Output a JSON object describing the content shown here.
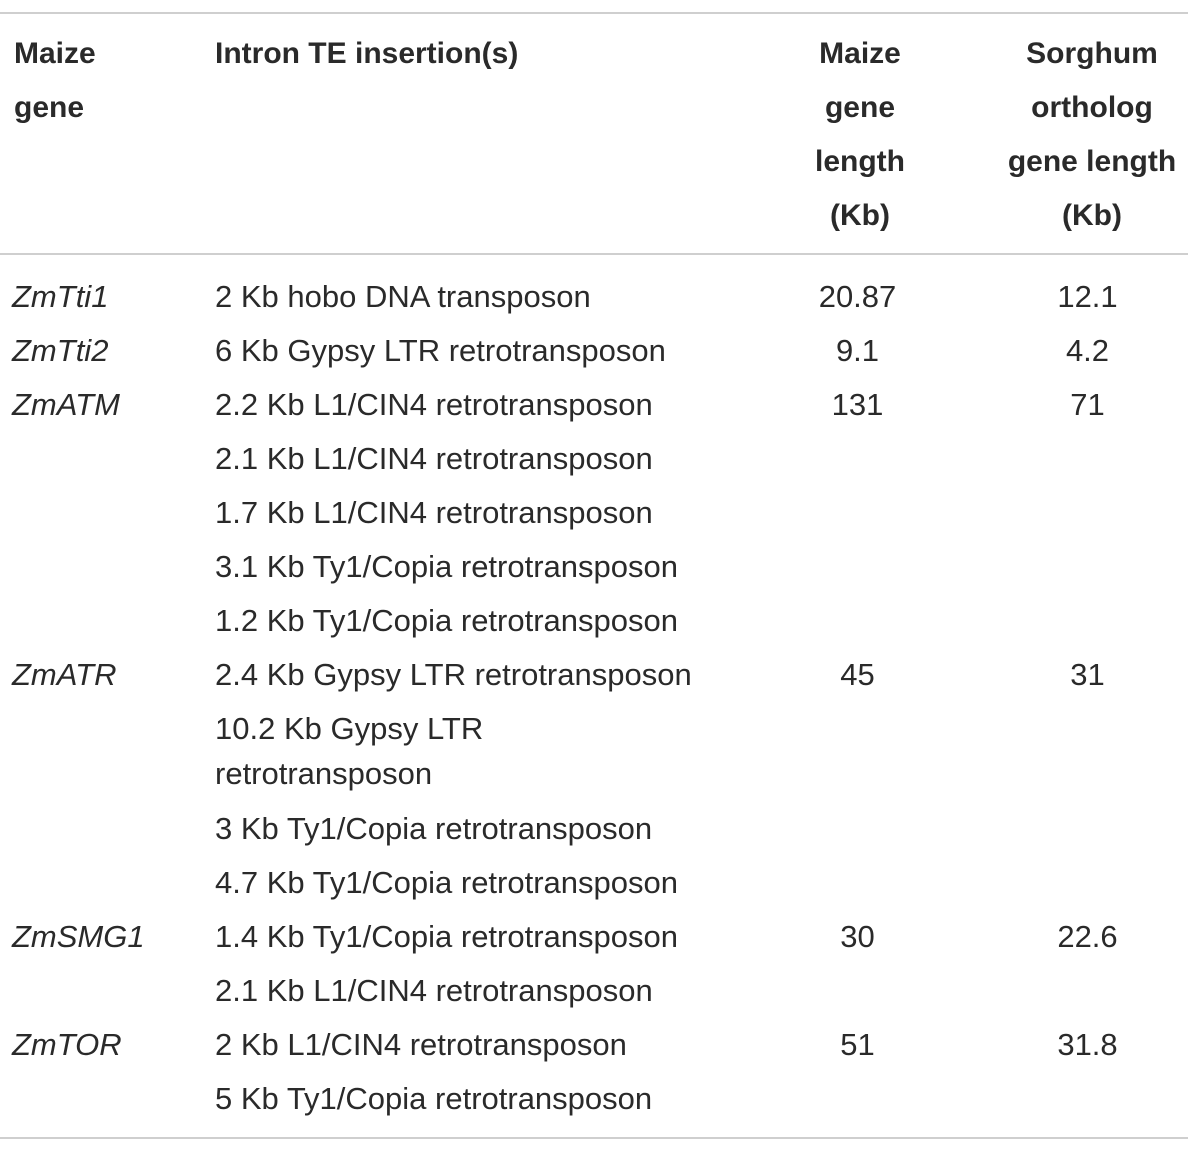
{
  "table": {
    "headers": {
      "gene": "Maize\ngene",
      "te": "Intron TE insertion(s)",
      "maize_length": "Maize\ngene\nlength\n(Kb)",
      "sorghum_length": "Sorghum\northolog\ngene length\n(Kb)"
    },
    "rows": [
      {
        "gene": "ZmTti1",
        "te": "2 Kb hobo DNA transposon",
        "maize": "20.87",
        "sorghum": "12.1"
      },
      {
        "gene": "ZmTti2",
        "te": "6 Kb Gypsy LTR retrotransposon",
        "maize": "9.1",
        "sorghum": "4.2"
      },
      {
        "gene": "ZmATM",
        "te": "2.2 Kb L1/CIN4 retrotransposon",
        "maize": "131",
        "sorghum": "71"
      },
      {
        "gene": "",
        "te": "2.1 Kb L1/CIN4 retrotransposon",
        "maize": "",
        "sorghum": ""
      },
      {
        "gene": "",
        "te": "1.7 Kb L1/CIN4 retrotransposon",
        "maize": "",
        "sorghum": ""
      },
      {
        "gene": "",
        "te": "3.1 Kb Ty1/Copia retrotransposon",
        "maize": "",
        "sorghum": ""
      },
      {
        "gene": "",
        "te": "1.2 Kb Ty1/Copia retrotransposon",
        "maize": "",
        "sorghum": ""
      },
      {
        "gene": "ZmATR",
        "te": "2.4 Kb Gypsy LTR retrotransposon",
        "maize": "45",
        "sorghum": "31"
      },
      {
        "gene": "",
        "te": "10.2 Kb Gypsy LTR\nretrotransposon",
        "maize": "",
        "sorghum": ""
      },
      {
        "gene": "",
        "te": "3 Kb Ty1/Copia retrotransposon",
        "maize": "",
        "sorghum": ""
      },
      {
        "gene": "",
        "te": "4.7 Kb Ty1/Copia retrotransposon",
        "maize": "",
        "sorghum": ""
      },
      {
        "gene": "ZmSMG1",
        "te": "1.4 Kb Ty1/Copia retrotransposon",
        "maize": "30",
        "sorghum": "22.6"
      },
      {
        "gene": "",
        "te": "2.1 Kb L1/CIN4 retrotransposon",
        "maize": "",
        "sorghum": ""
      },
      {
        "gene": "ZmTOR",
        "te": "2 Kb L1/CIN4 retrotransposon",
        "maize": "51",
        "sorghum": "31.8"
      },
      {
        "gene": "",
        "te": "5 Kb Ty1/Copia retrotransposon",
        "maize": "",
        "sorghum": ""
      }
    ]
  }
}
